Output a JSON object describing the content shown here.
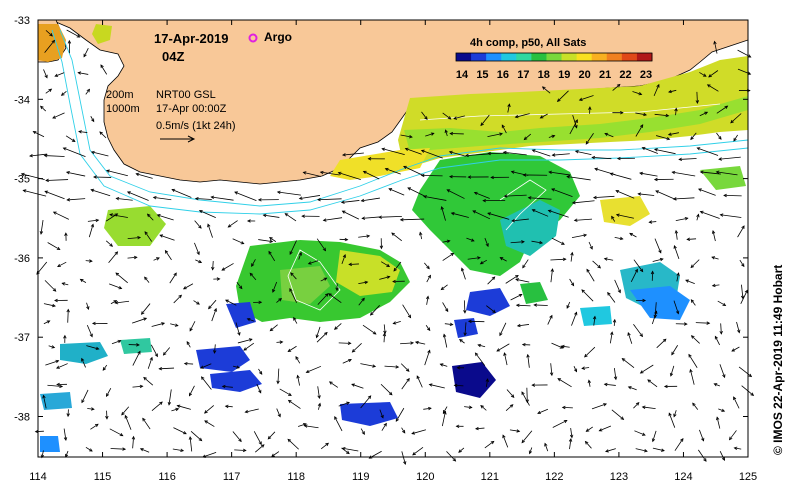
{
  "title": {
    "date": "17-Apr-2019",
    "time": "04Z",
    "argo_label": "Argo"
  },
  "legend": {
    "title": "4h comp, p50, All Sats",
    "ticks": [
      "14",
      "15",
      "16",
      "17",
      "18",
      "19",
      "20",
      "21",
      "22",
      "23"
    ],
    "colors": [
      "#0a0a8c",
      "#1c3cd8",
      "#1e90ff",
      "#20c8e0",
      "#30d8a0",
      "#28c040",
      "#78d83c",
      "#c8e028",
      "#f8e020",
      "#f8b020",
      "#f08020",
      "#e04818",
      "#b01818"
    ]
  },
  "info": {
    "isobath1": "200m",
    "isobath2": "1000m",
    "product": "NRT00 GSL",
    "time": "17-Apr 00:00Z",
    "vector_scale": "0.5m/s (1kt 24h)"
  },
  "axes": {
    "x_ticks": [
      "114",
      "115",
      "116",
      "117",
      "118",
      "119",
      "120",
      "121",
      "122",
      "123",
      "124",
      "125"
    ],
    "y_ticks": [
      "-33",
      "-34",
      "-35",
      "-36",
      "-37",
      "-38"
    ]
  },
  "credit": "© IMOS 22-Apr-2019 11:49 Hobart",
  "colors": {
    "land": "#f8c898",
    "isobath": "#30d0e8"
  }
}
